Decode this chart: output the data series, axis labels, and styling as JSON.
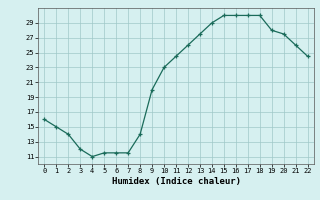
{
  "x": [
    0,
    1,
    2,
    3,
    4,
    5,
    6,
    7,
    8,
    9,
    10,
    11,
    12,
    13,
    14,
    15,
    16,
    17,
    18,
    19,
    20,
    21,
    22
  ],
  "y": [
    16,
    15,
    14,
    12,
    11,
    11.5,
    11.5,
    11.5,
    14,
    20,
    23,
    24.5,
    26,
    27.5,
    29,
    30,
    30,
    30,
    30,
    28,
    27.5,
    26,
    24.5
  ],
  "xlabel": "Humidex (Indice chaleur)",
  "line_color": "#1a6b5a",
  "bg_color": "#d6f0f0",
  "grid_color": "#a0c8c8",
  "ylim": [
    10,
    31
  ],
  "yticks": [
    11,
    13,
    15,
    17,
    19,
    21,
    23,
    25,
    27,
    29
  ],
  "xlim": [
    -0.5,
    22.5
  ],
  "xticks": [
    0,
    1,
    2,
    3,
    4,
    5,
    6,
    7,
    8,
    9,
    10,
    11,
    12,
    13,
    14,
    15,
    16,
    17,
    18,
    19,
    20,
    21,
    22
  ]
}
